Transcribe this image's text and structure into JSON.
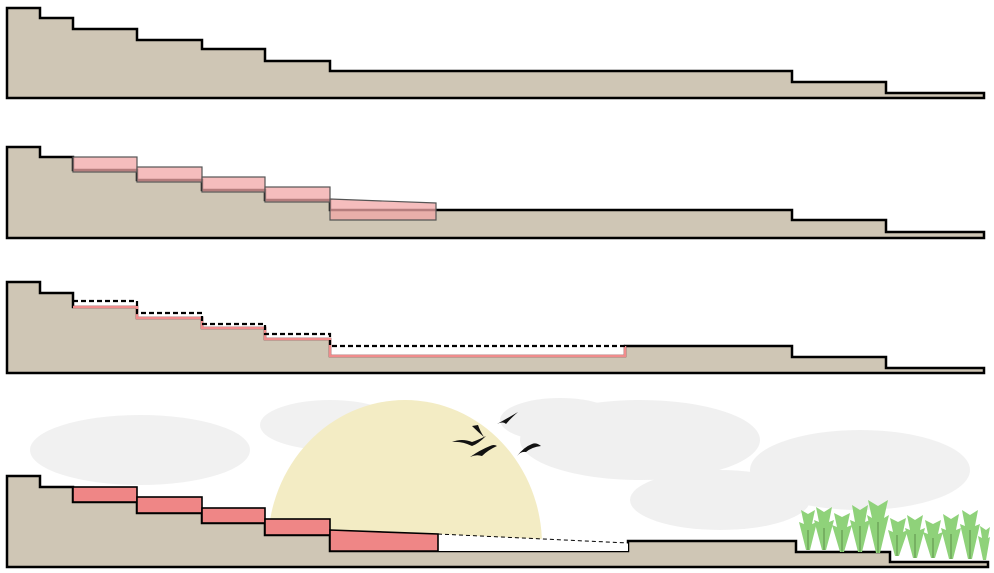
{
  "diagram": {
    "panels": [
      {
        "id": "panel-1",
        "description": "original-terrain-section"
      },
      {
        "id": "panel-2",
        "description": "terrace-insertion"
      },
      {
        "id": "panel-3",
        "description": "excavation-outline"
      },
      {
        "id": "panel-4",
        "description": "final-landscape"
      }
    ]
  },
  "colors": {
    "terrain": "#cfc6b5",
    "outline": "#000000",
    "terrace": "#f2a7a7",
    "terrace_solid": "#ef8686",
    "sun": "#f3ecc4",
    "tree": "#8fd27a",
    "cloud": "#eeeeee"
  },
  "icons": {
    "birds": "bird-icon",
    "trees": "tree-icon",
    "sun": "sun-shape"
  }
}
